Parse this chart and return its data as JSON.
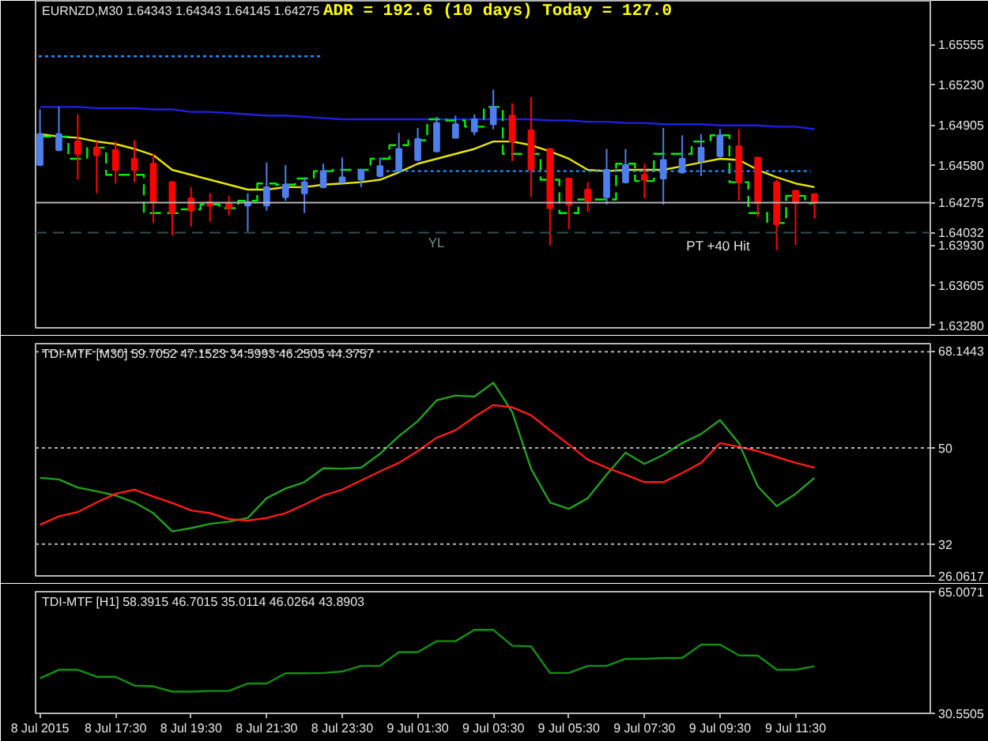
{
  "chart_data": [
    {
      "type": "candlestick",
      "title": "EURNZD,M30 1.64343 1.64343 1.64145 1.64275",
      "annotations": [
        "ADR = 192.6 (10 days) Today = 127.0",
        "YL",
        "PT +40 Hit"
      ],
      "x": [
        "2015-07-08T15:30",
        "2015-07-08T16:00",
        "2015-07-08T16:30",
        "2015-07-08T17:00",
        "2015-07-08T17:30",
        "2015-07-08T18:00",
        "2015-07-08T18:30",
        "2015-07-08T19:00",
        "2015-07-08T19:30",
        "2015-07-08T20:00",
        "2015-07-08T20:30",
        "2015-07-08T21:00",
        "2015-07-08T21:30",
        "2015-07-08T22:00",
        "2015-07-08T22:30",
        "2015-07-08T23:00",
        "2015-07-08T23:30",
        "2015-07-09T00:00",
        "2015-07-09T00:30",
        "2015-07-09T01:00",
        "2015-07-09T01:30",
        "2015-07-09T02:00",
        "2015-07-09T02:30",
        "2015-07-09T03:00",
        "2015-07-09T03:30",
        "2015-07-09T04:00",
        "2015-07-09T04:30",
        "2015-07-09T05:00",
        "2015-07-09T05:30",
        "2015-07-09T06:00",
        "2015-07-09T06:30",
        "2015-07-09T07:00",
        "2015-07-09T07:30",
        "2015-07-09T08:00",
        "2015-07-09T08:30",
        "2015-07-09T09:00",
        "2015-07-09T09:30",
        "2015-07-09T10:00",
        "2015-07-09T10:30",
        "2015-07-09T11:00",
        "2015-07-09T11:30",
        "2015-07-09T12:00"
      ],
      "ohlc": [
        [
          1.6458,
          1.6503,
          1.6457,
          1.6483
        ],
        [
          1.647,
          1.6505,
          1.6469,
          1.6483
        ],
        [
          1.6477,
          1.6499,
          1.6446,
          1.6467
        ],
        [
          1.6472,
          1.6477,
          1.6435,
          1.6466
        ],
        [
          1.647,
          1.6477,
          1.6443,
          1.6454
        ],
        [
          1.6463,
          1.6478,
          1.6444,
          1.6454
        ],
        [
          1.6459,
          1.6467,
          1.6411,
          1.6428
        ],
        [
          1.6444,
          1.6445,
          1.6401,
          1.6419
        ],
        [
          1.6431,
          1.644,
          1.6408,
          1.6421
        ],
        [
          1.6428,
          1.6435,
          1.6412,
          1.6425
        ],
        [
          1.6427,
          1.6433,
          1.6417,
          1.6423
        ],
        [
          1.6425,
          1.6435,
          1.6404,
          1.6428
        ],
        [
          1.6425,
          1.646,
          1.6421,
          1.644
        ],
        [
          1.6432,
          1.6458,
          1.6429,
          1.6442
        ],
        [
          1.6435,
          1.6448,
          1.6419,
          1.6444
        ],
        [
          1.644,
          1.6459,
          1.6439,
          1.6453
        ],
        [
          1.6444,
          1.6464,
          1.6443,
          1.6448
        ],
        [
          1.6446,
          1.6455,
          1.644,
          1.6454
        ],
        [
          1.6449,
          1.6464,
          1.6448,
          1.6457
        ],
        [
          1.6453,
          1.6484,
          1.6452,
          1.6471
        ],
        [
          1.6462,
          1.6488,
          1.6461,
          1.6479
        ],
        [
          1.6469,
          1.6497,
          1.6468,
          1.6492
        ],
        [
          1.648,
          1.6498,
          1.648,
          1.6491
        ],
        [
          1.6485,
          1.6499,
          1.6482,
          1.6495
        ],
        [
          1.6491,
          1.6519,
          1.6487,
          1.6505
        ],
        [
          1.6498,
          1.6508,
          1.6461,
          1.6477
        ],
        [
          1.6486,
          1.6513,
          1.6432,
          1.6454
        ],
        [
          1.6471,
          1.6471,
          1.6393,
          1.6423
        ],
        [
          1.6447,
          1.6447,
          1.6406,
          1.6426
        ],
        [
          1.6438,
          1.6444,
          1.642,
          1.6429
        ],
        [
          1.6432,
          1.6471,
          1.6426,
          1.6454
        ],
        [
          1.6444,
          1.6471,
          1.6443,
          1.6458
        ],
        [
          1.645,
          1.6459,
          1.6431,
          1.6446
        ],
        [
          1.6447,
          1.6488,
          1.6426,
          1.6462
        ],
        [
          1.6452,
          1.6482,
          1.6451,
          1.6463
        ],
        [
          1.6461,
          1.6483,
          1.6449,
          1.6472
        ],
        [
          1.6465,
          1.6487,
          1.6464,
          1.6482
        ],
        [
          1.6473,
          1.6487,
          1.6429,
          1.6444
        ],
        [
          1.6464,
          1.6464,
          1.6416,
          1.6427
        ],
        [
          1.6444,
          1.6446,
          1.6389,
          1.641
        ],
        [
          1.6437,
          1.6437,
          1.6393,
          1.6427
        ],
        [
          1.64343,
          1.64343,
          1.64145,
          1.64275
        ]
      ],
      "colors": [
        "#4d80ee",
        "#4d80ee",
        "#ff0000",
        "#ff0000",
        "#ff0000",
        "#ff0000",
        "#ff0000",
        "#ff0000",
        "#ff0000",
        "#ff0000",
        "#ff0000",
        "#4d80ee",
        "#4d80ee",
        "#4d80ee",
        "#4d80ee",
        "#4d80ee",
        "#4d80ee",
        "#4d80ee",
        "#4d80ee",
        "#4d80ee",
        "#4d80ee",
        "#4d80ee",
        "#4d80ee",
        "#4d80ee",
        "#4d80ee",
        "#ff0000",
        "#ff0000",
        "#ff0000",
        "#ff0000",
        "#ff0000",
        "#4d80ee",
        "#4d80ee",
        "#ff0000",
        "#4d80ee",
        "#4d80ee",
        "#4d80ee",
        "#4d80ee",
        "#ff0000",
        "#ff0000",
        "#ff0000",
        "#ff0000",
        "#ff0000"
      ],
      "series": [
        {
          "type": "line",
          "color": "#e6e600",
          "values": [
            1.6483,
            1.6481,
            1.648,
            1.6477,
            1.6475,
            1.6471,
            1.6466,
            1.6454,
            1.645,
            1.6446,
            1.6442,
            1.6438,
            1.6438,
            1.644,
            1.644,
            1.6442,
            1.6443,
            1.6444,
            1.6446,
            1.6452,
            1.6459,
            1.6463,
            1.6467,
            1.6471,
            1.6477,
            1.6477,
            1.6474,
            1.6469,
            1.6463,
            1.6454,
            1.6453,
            1.6454,
            1.6454,
            1.6454,
            1.6457,
            1.646,
            1.6463,
            1.6462,
            1.6454,
            1.6448,
            1.6443,
            1.644
          ]
        },
        {
          "type": "line",
          "color": "#1f1fe6",
          "values": [
            1.6505,
            1.6505,
            1.6505,
            1.6504,
            1.6504,
            1.6504,
            1.6503,
            1.6503,
            1.6501,
            1.6501,
            1.65,
            1.6499,
            1.6498,
            1.6498,
            1.6497,
            1.6496,
            1.6495,
            1.6495,
            1.6495,
            1.6495,
            1.6495,
            1.6495,
            1.6495,
            1.6495,
            1.6495,
            1.6495,
            1.6495,
            1.6494,
            1.6494,
            1.6493,
            1.6493,
            1.6492,
            1.6492,
            1.6491,
            1.6491,
            1.6491,
            1.649,
            1.649,
            1.649,
            1.6489,
            1.6489,
            1.6487
          ]
        },
        {
          "type": "step",
          "color": "#00ee00",
          "line_style": "dashed",
          "values": [
            1.6481,
            1.6481,
            1.6463,
            1.6472,
            1.645,
            1.645,
            1.6419,
            1.6419,
            1.6422,
            1.6426,
            1.6423,
            1.6429,
            1.6443,
            1.6442,
            1.6447,
            1.6453,
            1.6454,
            1.6454,
            1.6463,
            1.6474,
            1.6478,
            1.6495,
            1.6494,
            1.6489,
            1.6505,
            1.6467,
            1.6467,
            1.6446,
            1.6419,
            1.643,
            1.643,
            1.6459,
            1.6445,
            1.6467,
            1.6467,
            1.6477,
            1.6482,
            1.6444,
            1.6419,
            1.6411,
            1.6433,
            1.6427
          ]
        },
        {
          "type": "line",
          "color": "#1e90ff",
          "line_style": "dotted",
          "x": [
            "2015-07-08T15:28",
            "2015-07-08T23:00"
          ],
          "values": [
            1.6546,
            1.6546
          ]
        },
        {
          "type": "line",
          "color": "#1e90ff",
          "line_style": "dotted",
          "x": [
            "2015-07-09T00:40",
            "2015-07-09T11:54"
          ],
          "values": [
            1.6453,
            1.6453
          ]
        }
      ],
      "ref_lines": [
        {
          "axis": "y",
          "value": 1.64275,
          "label": "1.64275",
          "color": "#b4b4b4"
        },
        {
          "axis": "y",
          "value": 1.64032,
          "label": "1.64032",
          "color": "#2f4f4f",
          "line_style": "dashed"
        }
      ],
      "xlim": [
        "2015-07-08T15:23",
        "2015-07-09T15:04"
      ],
      "ylim": [
        1.6326,
        1.6591
      ],
      "yticks": [
        1.65555,
        {
          "value": 1.6523,
          "label": "1.65230"
        },
        1.64905,
        {
          "value": 1.6458,
          "label": "1.64580"
        },
        {
          "value": 1.6393,
          "label": "1.63930"
        },
        1.63605,
        {
          "value": 1.6328,
          "label": "1.63280"
        }
      ],
      "tick_labels": "y"
    },
    {
      "type": "line",
      "title": "TDI-MTF [M30] 59.7052 47.1523 34.5993 46.2505 44.3757",
      "x": [
        "2015-07-08T15:30",
        "2015-07-08T16:00",
        "2015-07-08T16:30",
        "2015-07-08T17:00",
        "2015-07-08T17:30",
        "2015-07-08T18:00",
        "2015-07-08T18:30",
        "2015-07-08T19:00",
        "2015-07-08T19:30",
        "2015-07-08T20:00",
        "2015-07-08T20:30",
        "2015-07-08T21:00",
        "2015-07-08T21:30",
        "2015-07-08T22:00",
        "2015-07-08T22:30",
        "2015-07-08T23:00",
        "2015-07-08T23:30",
        "2015-07-09T00:00",
        "2015-07-09T00:30",
        "2015-07-09T01:00",
        "2015-07-09T01:30",
        "2015-07-09T02:00",
        "2015-07-09T02:30",
        "2015-07-09T03:00",
        "2015-07-09T03:30",
        "2015-07-09T04:00",
        "2015-07-09T04:30",
        "2015-07-09T05:00",
        "2015-07-09T05:30",
        "2015-07-09T06:00",
        "2015-07-09T06:30",
        "2015-07-09T07:00",
        "2015-07-09T07:30",
        "2015-07-09T08:00",
        "2015-07-09T08:30",
        "2015-07-09T09:00",
        "2015-07-09T09:30",
        "2015-07-09T10:00",
        "2015-07-09T10:30",
        "2015-07-09T11:00",
        "2015-07-09T11:30",
        "2015-07-09T12:00"
      ],
      "series": [
        {
          "color": "#22a022",
          "values": [
            44.4,
            44.1,
            42.6,
            41.9,
            41.1,
            39.8,
            37.8,
            34.4,
            35.0,
            35.8,
            36.2,
            36.9,
            40.6,
            42.4,
            43.6,
            46.2,
            46.1,
            46.3,
            48.9,
            52.2,
            55.0,
            58.9,
            59.8,
            59.6,
            62.2,
            56.7,
            46.1,
            39.8,
            38.6,
            40.6,
            45.0,
            49.1,
            47.0,
            48.7,
            50.9,
            52.6,
            55.2,
            50.9,
            42.8,
            39.1,
            41.4,
            44.4
          ]
        },
        {
          "color": "#ff1a1a",
          "values": [
            35.6,
            37.2,
            38.0,
            39.8,
            41.4,
            42.2,
            40.9,
            39.7,
            38.3,
            37.8,
            36.7,
            36.4,
            36.9,
            37.8,
            39.4,
            41.1,
            42.2,
            43.9,
            45.6,
            47.2,
            49.4,
            51.9,
            53.3,
            55.8,
            58.0,
            57.6,
            56.1,
            53.3,
            50.6,
            47.8,
            46.3,
            45.0,
            43.6,
            43.6,
            45.3,
            47.2,
            50.9,
            50.2,
            49.4,
            48.3,
            47.2,
            46.3
          ]
        }
      ],
      "ref_lines": [
        {
          "axis": "y",
          "value": 68,
          "color": "#b0b0b0",
          "line_style": "dotted"
        },
        {
          "axis": "y",
          "value": 50,
          "color": "#b0b0b0",
          "line_style": "dotted"
        },
        {
          "axis": "y",
          "value": 32,
          "color": "#b0b0b0",
          "line_style": "dotted"
        }
      ],
      "xlim": [
        "2015-07-08T15:23",
        "2015-07-09T15:04"
      ],
      "ylim": [
        26.0617,
        69.5
      ],
      "yticks": [
        26.0617,
        32,
        50,
        68.1443
      ],
      "tick_labels": "y"
    },
    {
      "type": "line",
      "title": "TDI-MTF [H1] 58.3915 46.7015 35.0114 46.0264 43.8903",
      "x": [
        "2015-07-08T15:30",
        "2015-07-08T16:00",
        "2015-07-08T16:30",
        "2015-07-08T17:00",
        "2015-07-08T17:30",
        "2015-07-08T18:00",
        "2015-07-08T18:30",
        "2015-07-08T19:00",
        "2015-07-08T19:30",
        "2015-07-08T20:00",
        "2015-07-08T20:30",
        "2015-07-08T21:00",
        "2015-07-08T21:30",
        "2015-07-08T22:00",
        "2015-07-08T22:30",
        "2015-07-08T23:00",
        "2015-07-08T23:30",
        "2015-07-09T00:00",
        "2015-07-09T00:30",
        "2015-07-09T01:00",
        "2015-07-09T01:30",
        "2015-07-09T02:00",
        "2015-07-09T02:30",
        "2015-07-09T03:00",
        "2015-07-09T03:30",
        "2015-07-09T04:00",
        "2015-07-09T04:30",
        "2015-07-09T05:00",
        "2015-07-09T05:30",
        "2015-07-09T06:00",
        "2015-07-09T06:30",
        "2015-07-09T07:00",
        "2015-07-09T07:30",
        "2015-07-09T08:00",
        "2015-07-09T08:30",
        "2015-07-09T09:00",
        "2015-07-09T09:30",
        "2015-07-09T10:00",
        "2015-07-09T10:30",
        "2015-07-09T11:00",
        "2015-07-09T11:30",
        "2015-07-09T12:00"
      ],
      "series": [
        {
          "color": "#129012",
          "values": [
            40.5,
            42.9,
            42.9,
            40.9,
            40.9,
            38.4,
            38.2,
            36.7,
            36.7,
            36.9,
            36.9,
            39.0,
            39.0,
            41.9,
            41.9,
            42.0,
            42.4,
            44.0,
            44.0,
            47.9,
            47.9,
            51.0,
            51.0,
            54.2,
            54.2,
            49.7,
            49.5,
            42.0,
            42.0,
            44.0,
            44.0,
            46.0,
            46.0,
            46.2,
            46.2,
            50.0,
            50.0,
            47.0,
            46.9,
            42.9,
            42.9,
            43.9
          ]
        }
      ],
      "xlim": [
        "2015-07-08T15:23",
        "2015-07-09T15:04"
      ],
      "xticks": [
        {
          "value": "2015-07-08T15:30",
          "label": "8 Jul 2015"
        },
        {
          "value": "2015-07-08T17:30",
          "label": "8 Jul 17:30"
        },
        {
          "value": "2015-07-08T19:30",
          "label": "8 Jul 19:30"
        },
        {
          "value": "2015-07-08T21:30",
          "label": "8 Jul 21:30"
        },
        {
          "value": "2015-07-08T23:30",
          "label": "8 Jul 23:30"
        },
        {
          "value": "2015-07-09T01:30",
          "label": "9 Jul 01:30"
        },
        {
          "value": "2015-07-09T03:30",
          "label": "9 Jul 03:30"
        },
        {
          "value": "2015-07-09T05:30",
          "label": "9 Jul 05:30"
        },
        {
          "value": "2015-07-09T07:30",
          "label": "9 Jul 07:30"
        },
        {
          "value": "2015-07-09T09:30",
          "label": "9 Jul 09:30"
        },
        {
          "value": "2015-07-09T11:30",
          "label": "9 Jul 11:30"
        }
      ],
      "ylim": [
        30.5505,
        65.0071
      ],
      "yticks": [
        30.5505,
        65.0071
      ]
    }
  ]
}
